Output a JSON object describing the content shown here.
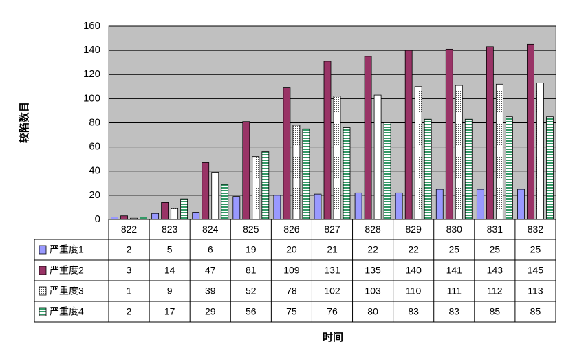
{
  "chart_data": {
    "type": "bar",
    "title": "",
    "xlabel": "时间",
    "ylabel": "较陷数目",
    "ylim": [
      0,
      160
    ],
    "yticks": [
      0,
      20,
      40,
      60,
      80,
      100,
      120,
      140,
      160
    ],
    "grid": true,
    "legend": "table-left",
    "categories": [
      "822",
      "823",
      "824",
      "825",
      "826",
      "827",
      "828",
      "829",
      "830",
      "831",
      "832"
    ],
    "series": [
      {
        "name": "严重度1",
        "values": [
          2,
          5,
          6,
          19,
          20,
          21,
          22,
          22,
          25,
          25,
          25
        ],
        "color": "#9999ff",
        "pattern": "solid"
      },
      {
        "name": "严重度2",
        "values": [
          3,
          14,
          47,
          81,
          109,
          131,
          135,
          140,
          141,
          143,
          145
        ],
        "color": "#993366",
        "pattern": "solid"
      },
      {
        "name": "严重度3",
        "values": [
          1,
          9,
          39,
          52,
          78,
          102,
          103,
          110,
          111,
          112,
          113
        ],
        "color": "#ffffff",
        "pattern": "dots"
      },
      {
        "name": "严重度4",
        "values": [
          2,
          17,
          29,
          56,
          75,
          76,
          80,
          83,
          83,
          85,
          85
        ],
        "color": "#339966",
        "pattern": "hstripes"
      }
    ]
  }
}
